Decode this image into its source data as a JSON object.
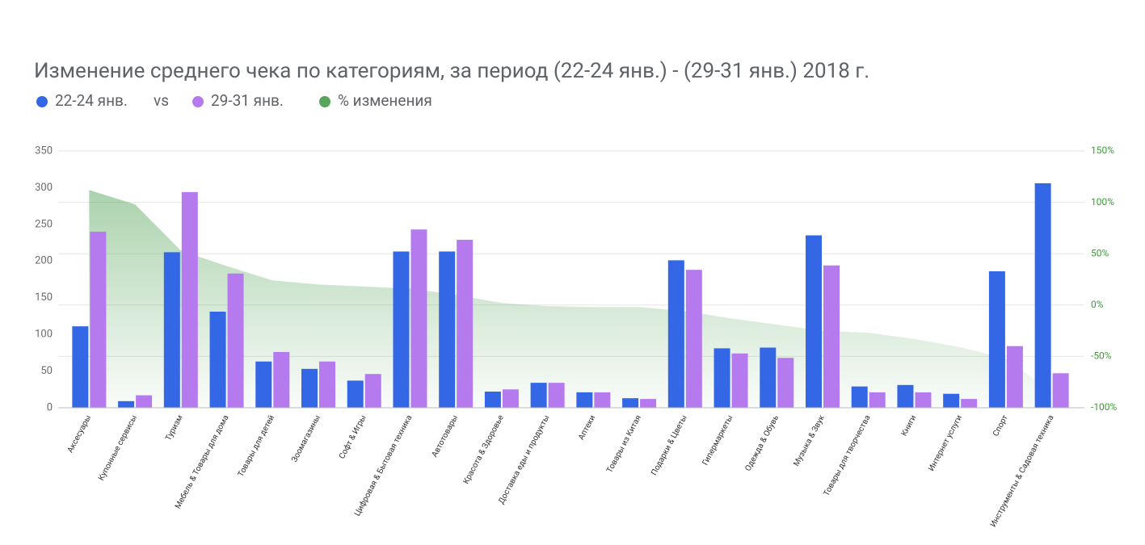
{
  "chart_data": {
    "type": "bar",
    "title": "Изменение среднего чека по категориям, за период (22-24 янв.) - (29-31 янв.) 2018 г.",
    "legend_text": "vs",
    "categories": [
      "Аксесуары",
      "Купонные сервисы",
      "Туризм",
      "Мебель & Товары для дома",
      "Товары для детей",
      "Зоомагазины",
      "Софт & Игры",
      "Цифровая & Бытовая техника",
      "Автотовары",
      "Красота & Здоровье",
      "Доставка еды и продукты",
      "Аптеки",
      "Товары из Китая",
      "Подарки & Цветы",
      "Гипермаркеты",
      "Одежда & Обувь",
      "Музыка & Звук",
      "Товары для творчества",
      "Книги",
      "Интернет услуги",
      "Спорт",
      "Инструменты & Садовая техника"
    ],
    "series": [
      {
        "name": "22-24 янв.",
        "color": "#3367e6",
        "values": [
          111,
          9,
          212,
          131,
          63,
          53,
          37,
          213,
          213,
          22,
          34,
          21,
          13,
          201,
          81,
          82,
          235,
          29,
          31,
          19,
          186,
          306
        ]
      },
      {
        "name": "29-31 янв.",
        "color": "#b57bee",
        "values": [
          240,
          17,
          294,
          183,
          76,
          63,
          46,
          243,
          229,
          25,
          34,
          21,
          12,
          188,
          74,
          68,
          194,
          21,
          21,
          12,
          84,
          47
        ]
      },
      {
        "name": "% изменения",
        "color": "#57a55a",
        "type": "area",
        "axis": "y2",
        "values": [
          112,
          98,
          53,
          38,
          24,
          20,
          18,
          16,
          10,
          2,
          -1,
          -2,
          -2,
          -6,
          -13,
          -19,
          -25,
          -27,
          -33,
          -41,
          -52,
          -85
        ]
      }
    ],
    "ylim": [
      0,
      350
    ],
    "yticks": [
      0,
      50,
      100,
      150,
      200,
      250,
      300,
      350
    ],
    "y2lim": [
      -100,
      150
    ],
    "y2ticks": [
      {
        "value": -100,
        "label": "-100%"
      },
      {
        "value": -50,
        "label": "-50%"
      },
      {
        "value": 0,
        "label": "0%"
      },
      {
        "value": 50,
        "label": "50%"
      },
      {
        "value": 100,
        "label": "100%"
      },
      {
        "value": 150,
        "label": "150%"
      }
    ],
    "grid": true
  }
}
